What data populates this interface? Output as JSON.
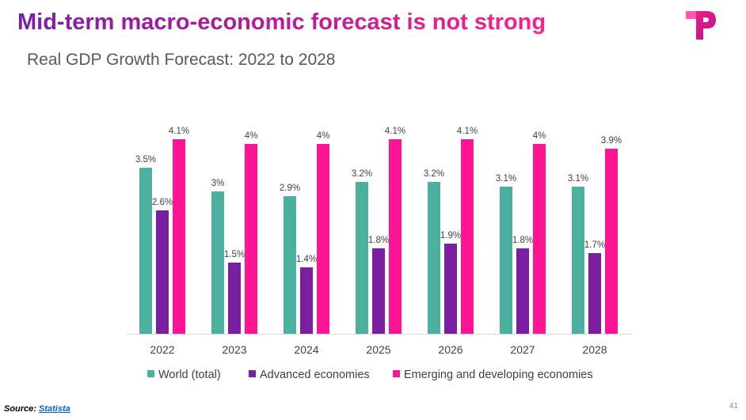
{
  "slide": {
    "title": "Mid-term macro-economic forecast is not strong",
    "subtitle": "Real GDP Growth Forecast: 2022 to 2028",
    "source_label": "Source:",
    "source_link": "Statista",
    "page_number": "41",
    "logo_icon": "tp-brand-logo"
  },
  "colors": {
    "world": "#4bb19e",
    "advanced": "#7b1fa2",
    "emerging": "#ff1493",
    "title_start": "#7a1ea8",
    "title_end": "#ff1f8a"
  },
  "chart_data": {
    "type": "bar",
    "title": "Real GDP Growth Forecast: 2022 to 2028",
    "xlabel": "",
    "ylabel": "",
    "ylim": [
      0,
      4.5
    ],
    "grid": false,
    "legend_position": "bottom",
    "categories": [
      "2022",
      "2023",
      "2024",
      "2025",
      "2026",
      "2027",
      "2028"
    ],
    "series": [
      {
        "name": "World (total)",
        "values": [
          3.5,
          3.0,
          2.9,
          3.2,
          3.2,
          3.1,
          3.1
        ],
        "labels": [
          "3.5%",
          "3%",
          "2.9%",
          "3.2%",
          "3.2%",
          "3.1%",
          "3.1%"
        ]
      },
      {
        "name": "Advanced economies",
        "values": [
          2.6,
          1.5,
          1.4,
          1.8,
          1.9,
          1.8,
          1.7
        ],
        "labels": [
          "2.6%",
          "1.5%",
          "1.4%",
          "1.8%",
          "1.9%",
          "1.8%",
          "1.7%"
        ]
      },
      {
        "name": "Emerging and developing economies",
        "values": [
          4.1,
          4.0,
          4.0,
          4.1,
          4.1,
          4.0,
          3.9
        ],
        "labels": [
          "4.1%",
          "4%",
          "4%",
          "4.1%",
          "4.1%",
          "4%",
          "3.9%"
        ]
      }
    ]
  }
}
